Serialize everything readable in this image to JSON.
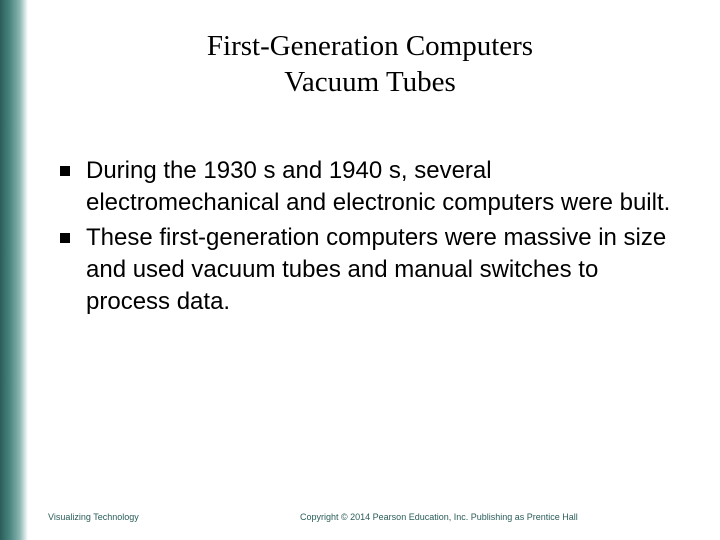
{
  "colors": {
    "gradient_dark": "#2a5d5a",
    "gradient_mid": "#4a8580",
    "gradient_light": "#8ab5b0",
    "background": "#ffffff",
    "title_text": "#000000",
    "body_text": "#000000",
    "bullet_color": "#000000",
    "footer_text": "#2a5d5a"
  },
  "typography": {
    "title_font": "Georgia, serif",
    "title_fontsize": 29,
    "body_font": "Arial, sans-serif",
    "body_fontsize": 24,
    "footer_fontsize": 9
  },
  "title": {
    "line1": "First-Generation Computers",
    "line2": "Vacuum Tubes"
  },
  "bullets": [
    "During the 1930 s and 1940 s, several electromechanical and electronic computers were built.",
    "These first-generation computers were massive in size and used vacuum tubes and manual switches to process data."
  ],
  "footer": {
    "left": "Visualizing Technology",
    "right": "Copyright © 2014 Pearson Education, Inc. Publishing as Prentice Hall"
  }
}
